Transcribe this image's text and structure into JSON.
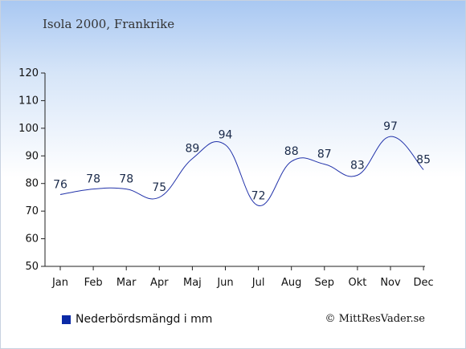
{
  "header": {
    "title": "Isola 2000, Frankrike"
  },
  "legend": {
    "label": "Nederbördsmängd i mm"
  },
  "footer": {
    "copyright": "© MittResVader.se"
  },
  "colors": {
    "line": "#2233aa",
    "swatch": "#0b2aa6",
    "axis": "#222222"
  },
  "chart_data": {
    "type": "line",
    "categories": [
      "Jan",
      "Feb",
      "Mar",
      "Apr",
      "Maj",
      "Jun",
      "Jul",
      "Aug",
      "Sep",
      "Okt",
      "Nov",
      "Dec"
    ],
    "series": [
      {
        "name": "Nederbördsmängd i mm",
        "values": [
          76,
          78,
          78,
          75,
          89,
          94,
          72,
          88,
          87,
          83,
          97,
          85
        ]
      }
    ],
    "ylim": [
      50,
      120
    ],
    "yticks": [
      50,
      60,
      70,
      80,
      90,
      100,
      110,
      120
    ],
    "title": "Isola 2000, Frankrike",
    "xlabel": "",
    "ylabel": "",
    "grid": false,
    "legend_position": "bottom-left"
  }
}
